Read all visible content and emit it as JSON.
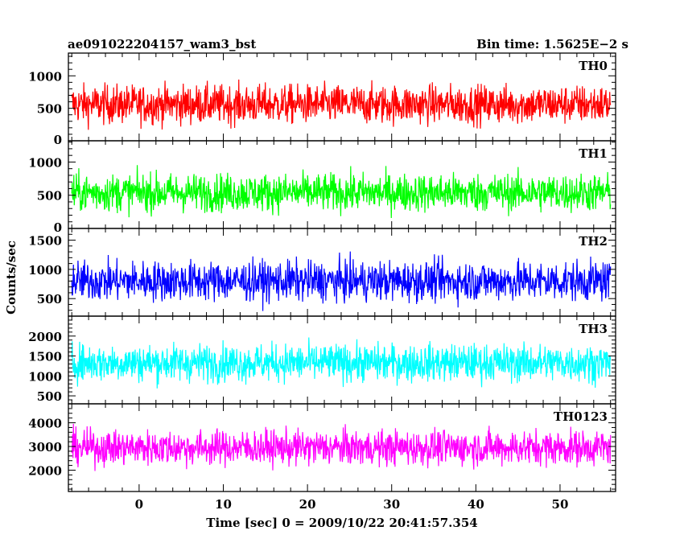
{
  "header": {
    "title": "ae091022204157_wam3_bst",
    "bin_time": "Bin time: 1.5625E−2 s"
  },
  "chart_data": {
    "type": "line",
    "xlabel": "Time [sec] 0 = 2009/10/22 20:41:57.354",
    "ylabel": "Counts/sec",
    "xlim": [
      -8.4,
      56.6
    ],
    "x_ticks": [
      0,
      10,
      20,
      30,
      40,
      50
    ],
    "x_range_data": [
      -8.0,
      56.0
    ],
    "panels": [
      {
        "name": "TH0",
        "color": "#ff0000",
        "ylim": [
          0,
          1350
        ],
        "y_ticks": [
          0,
          500,
          1000
        ],
        "baseline": 560,
        "noise": 210,
        "low": 30,
        "high": 1350
      },
      {
        "name": "TH1",
        "color": "#00ff00",
        "ylim": [
          0,
          1320
        ],
        "y_ticks": [
          0,
          500,
          1000
        ],
        "baseline": 540,
        "noise": 200,
        "low": 20,
        "high": 1320
      },
      {
        "name": "TH2",
        "color": "#0000ff",
        "ylim": [
          200,
          1700
        ],
        "y_ticks": [
          500,
          1000,
          1500
        ],
        "baseline": 800,
        "noise": 240,
        "low": 220,
        "high": 1700
      },
      {
        "name": "TH3",
        "color": "#00ffff",
        "ylim": [
          300,
          2500
        ],
        "y_ticks": [
          500,
          1000,
          1500,
          2000
        ],
        "baseline": 1330,
        "noise": 330,
        "low": 320,
        "high": 2500
      },
      {
        "name": "TH0123",
        "color": "#ff00ff",
        "ylim": [
          1100,
          4800
        ],
        "y_ticks": [
          2000,
          3000,
          4000
        ],
        "baseline": 2950,
        "noise": 520,
        "low": 1150,
        "high": 4800
      }
    ]
  }
}
